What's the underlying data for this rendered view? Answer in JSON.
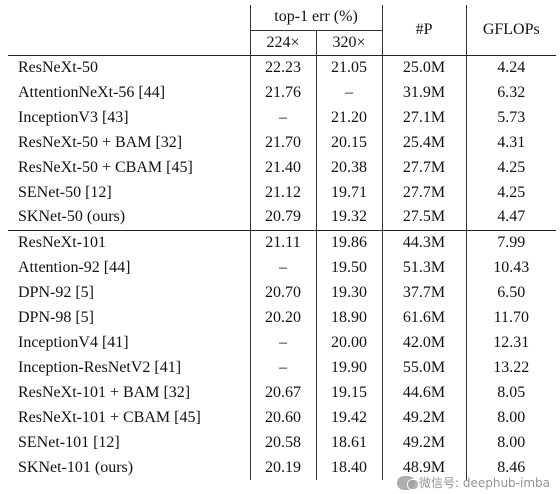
{
  "header": {
    "group_label": "top-1 err (%)",
    "sub_224": "224×",
    "sub_320": "320×",
    "params": "#P",
    "gflops": "GFLOPs"
  },
  "groups": [
    {
      "rows": [
        {
          "model": "ResNeXt-50",
          "e224": "22.23",
          "e320": "21.05",
          "params": "25.0M",
          "gflops": "4.24"
        },
        {
          "model": "AttentionNeXt-56 [44]",
          "e224": "21.76",
          "e320": "–",
          "params": "31.9M",
          "gflops": "6.32"
        },
        {
          "model": "InceptionV3 [43]",
          "e224": "–",
          "e320": "21.20",
          "params": "27.1M",
          "gflops": "5.73"
        },
        {
          "model": "ResNeXt-50 + BAM [32]",
          "e224": "21.70",
          "e320": "20.15",
          "params": "25.4M",
          "gflops": "4.31"
        },
        {
          "model": "ResNeXt-50 + CBAM [45]",
          "e224": "21.40",
          "e320": "20.38",
          "params": "27.7M",
          "gflops": "4.25"
        },
        {
          "model": "SENet-50 [12]",
          "e224": "21.12",
          "e320": "19.71",
          "params": "27.7M",
          "gflops": "4.25"
        },
        {
          "model": "SKNet-50 (ours)",
          "e224": "20.79",
          "e320": "19.32",
          "params": "27.5M",
          "gflops": "4.47",
          "bold": true
        }
      ]
    },
    {
      "rows": [
        {
          "model": "ResNeXt-101",
          "e224": "21.11",
          "e320": "19.86",
          "params": "44.3M",
          "gflops": "7.99"
        },
        {
          "model": "Attention-92 [44]",
          "e224": "–",
          "e320": "19.50",
          "params": "51.3M",
          "gflops": "10.43"
        },
        {
          "model": "DPN-92 [5]",
          "e224": "20.70",
          "e320": "19.30",
          "params": "37.7M",
          "gflops": "6.50"
        },
        {
          "model": "DPN-98 [5]",
          "e224": "20.20",
          "e320": "18.90",
          "params": "61.6M",
          "gflops": "11.70"
        },
        {
          "model": "InceptionV4 [41]",
          "e224": "–",
          "e320": "20.00",
          "params": "42.0M",
          "gflops": "12.31"
        },
        {
          "model": "Inception-ResNetV2 [41]",
          "e224": "–",
          "e320": "19.90",
          "params": "55.0M",
          "gflops": "13.22"
        },
        {
          "model": "ResNeXt-101 + BAM [32]",
          "e224": "20.67",
          "e320": "19.15",
          "params": "44.6M",
          "gflops": "8.05"
        },
        {
          "model": "ResNeXt-101 + CBAM [45]",
          "e224": "20.60",
          "e320": "19.42",
          "params": "49.2M",
          "gflops": "8.00"
        },
        {
          "model": "SENet-101 [12]",
          "e224": "20.58",
          "e320": "18.61",
          "params": "49.2M",
          "gflops": "8.00"
        },
        {
          "model": "SKNet-101 (ours)",
          "e224": "20.19",
          "e320": "18.40",
          "params": "48.9M",
          "gflops": "8.46",
          "bold": true
        }
      ]
    }
  ],
  "watermark": {
    "text": "微信号: deephub-imba",
    "icon": "wechat-icon"
  }
}
